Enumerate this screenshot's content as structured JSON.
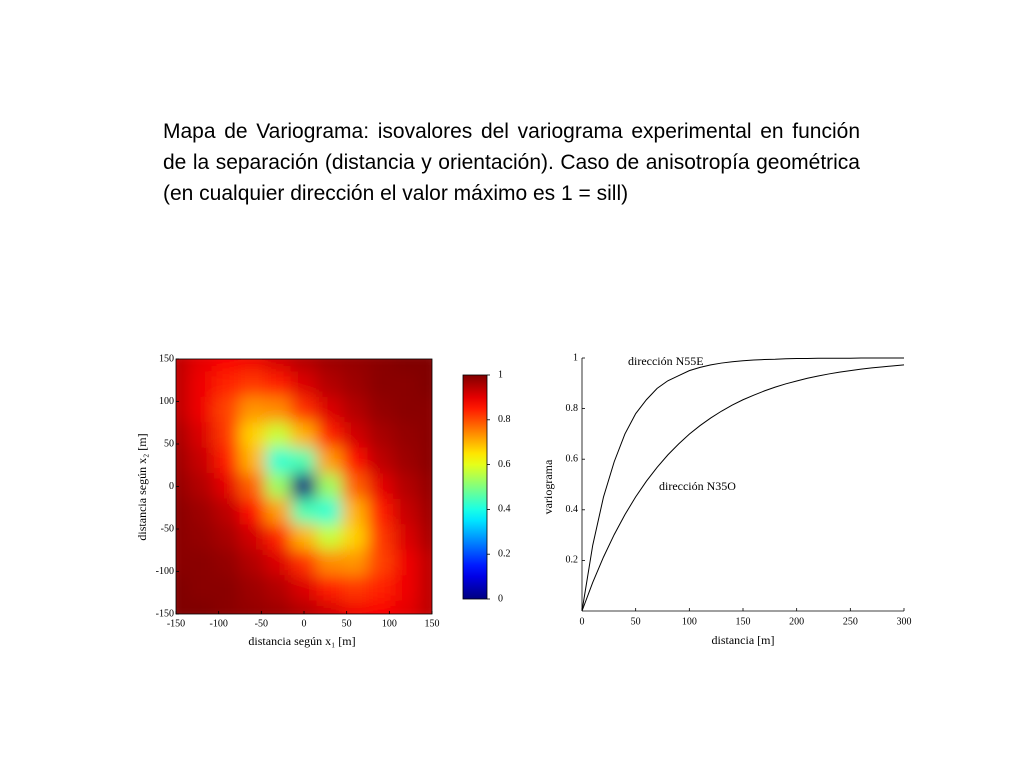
{
  "text": "Mapa de Variograma: isovalores del variograma experimental en función de la separación (distancia y orientación). Caso de anisotropía geométrica (en cualquier dirección el valor máximo es 1 = sill)",
  "chart_data": [
    {
      "type": "heatmap",
      "xlabel": "distancia según x₁ [m]",
      "ylabel": "distancia según x₂ [m]",
      "x": [
        -150,
        -120,
        -90,
        -60,
        -30,
        0,
        30,
        60,
        90,
        120,
        150
      ],
      "y": [
        150,
        120,
        90,
        60,
        30,
        0,
        -30,
        -60,
        -90,
        -120,
        -150
      ],
      "z": [
        [
          0.94,
          0.9,
          0.88,
          0.89,
          0.92,
          0.95,
          0.97,
          0.98,
          0.99,
          1.0,
          1.0
        ],
        [
          0.94,
          0.89,
          0.84,
          0.82,
          0.85,
          0.91,
          0.95,
          0.97,
          0.99,
          0.99,
          1.0
        ],
        [
          0.94,
          0.89,
          0.81,
          0.73,
          0.74,
          0.83,
          0.91,
          0.95,
          0.98,
          0.99,
          0.99
        ],
        [
          0.96,
          0.91,
          0.82,
          0.67,
          0.57,
          0.7,
          0.84,
          0.92,
          0.96,
          0.98,
          0.99
        ],
        [
          0.97,
          0.93,
          0.85,
          0.7,
          0.42,
          0.45,
          0.72,
          0.86,
          0.94,
          0.97,
          0.99
        ],
        [
          0.98,
          0.95,
          0.9,
          0.78,
          0.53,
          0,
          0.53,
          0.78,
          0.9,
          0.95,
          0.98
        ],
        [
          0.99,
          0.97,
          0.94,
          0.86,
          0.72,
          0.45,
          0.42,
          0.7,
          0.85,
          0.93,
          0.97
        ],
        [
          0.99,
          0.98,
          0.96,
          0.92,
          0.84,
          0.7,
          0.57,
          0.67,
          0.82,
          0.91,
          0.96
        ],
        [
          0.99,
          0.99,
          0.98,
          0.95,
          0.91,
          0.83,
          0.74,
          0.73,
          0.81,
          0.89,
          0.94
        ],
        [
          1.0,
          0.99,
          0.99,
          0.97,
          0.95,
          0.91,
          0.85,
          0.82,
          0.84,
          0.89,
          0.94
        ],
        [
          1.0,
          1.0,
          0.99,
          0.98,
          0.97,
          0.95,
          0.92,
          0.89,
          0.88,
          0.9,
          0.94
        ]
      ],
      "xlim": [
        -150,
        150
      ],
      "ylim": [
        -150,
        150
      ],
      "xticks": [
        -150,
        -100,
        -50,
        0,
        50,
        100,
        150
      ],
      "yticks": [
        -150,
        -100,
        -50,
        0,
        50,
        100,
        150
      ],
      "colormap": "jet",
      "colorbar": {
        "lim": [
          0,
          1
        ],
        "ticks": [
          0,
          0.2,
          0.4,
          0.6,
          0.8,
          1
        ]
      }
    },
    {
      "type": "line",
      "xlabel": "distancia [m]",
      "ylabel": "variograma",
      "x": [
        0,
        10,
        20,
        30,
        40,
        50,
        60,
        70,
        80,
        90,
        100,
        110,
        120,
        130,
        140,
        150,
        160,
        170,
        180,
        190,
        200,
        210,
        220,
        230,
        240,
        250,
        260,
        270,
        280,
        290,
        300
      ],
      "series": [
        {
          "name": "dirección N55E",
          "color": "#000000",
          "values": [
            0,
            0.26,
            0.45,
            0.59,
            0.7,
            0.78,
            0.835,
            0.88,
            0.91,
            0.93,
            0.95,
            0.963,
            0.973,
            0.98,
            0.985,
            0.989,
            0.992,
            0.994,
            0.995,
            0.997,
            0.998,
            0.998,
            0.999,
            0.999,
            0.999,
            0.999,
            1,
            1,
            1,
            1,
            1
          ]
        },
        {
          "name": "dirección N35O",
          "color": "#000000",
          "values": [
            0,
            0.113,
            0.213,
            0.302,
            0.381,
            0.451,
            0.513,
            0.568,
            0.617,
            0.66,
            0.699,
            0.733,
            0.763,
            0.79,
            0.814,
            0.835,
            0.853,
            0.87,
            0.885,
            0.898,
            0.909,
            0.92,
            0.929,
            0.937,
            0.944,
            0.95,
            0.956,
            0.961,
            0.965,
            0.969,
            0.973
          ]
        }
      ],
      "xlim": [
        0,
        300
      ],
      "ylim": [
        0,
        1
      ],
      "xticks": [
        0,
        50,
        100,
        150,
        200,
        250,
        300
      ],
      "yticks": [
        0.2,
        0.4,
        0.6,
        0.8,
        1
      ]
    }
  ]
}
